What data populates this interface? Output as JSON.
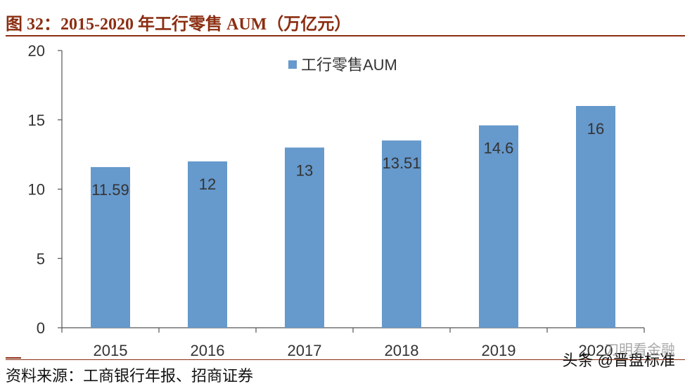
{
  "figure": {
    "title": "图 32：2015-2020 年工行零售 AUM（万亿元）",
    "source": "资料来源：工商银行年报、招商证券",
    "watermark_main": "头条 @晋盘标准",
    "watermark_overlay": "刀明看金融"
  },
  "colors": {
    "title": "#8B2E12",
    "bar": "#6699CC",
    "axis": "#555555",
    "text": "#333333"
  },
  "chart_data": {
    "type": "bar",
    "categories": [
      "2015",
      "2016",
      "2017",
      "2018",
      "2019",
      "2020"
    ],
    "series": [
      {
        "name": "工行零售AUM",
        "values": [
          11.59,
          12,
          13,
          13.51,
          14.6,
          16
        ]
      }
    ],
    "data_labels": [
      "11.59",
      "12",
      "13",
      "13.51",
      "14.6",
      "16"
    ],
    "ylim": [
      0,
      20
    ],
    "yticks": [
      "0",
      "5",
      "10",
      "15",
      "20"
    ],
    "xlabel": "",
    "ylabel": "",
    "grid": false,
    "legend_position": "top-center"
  }
}
